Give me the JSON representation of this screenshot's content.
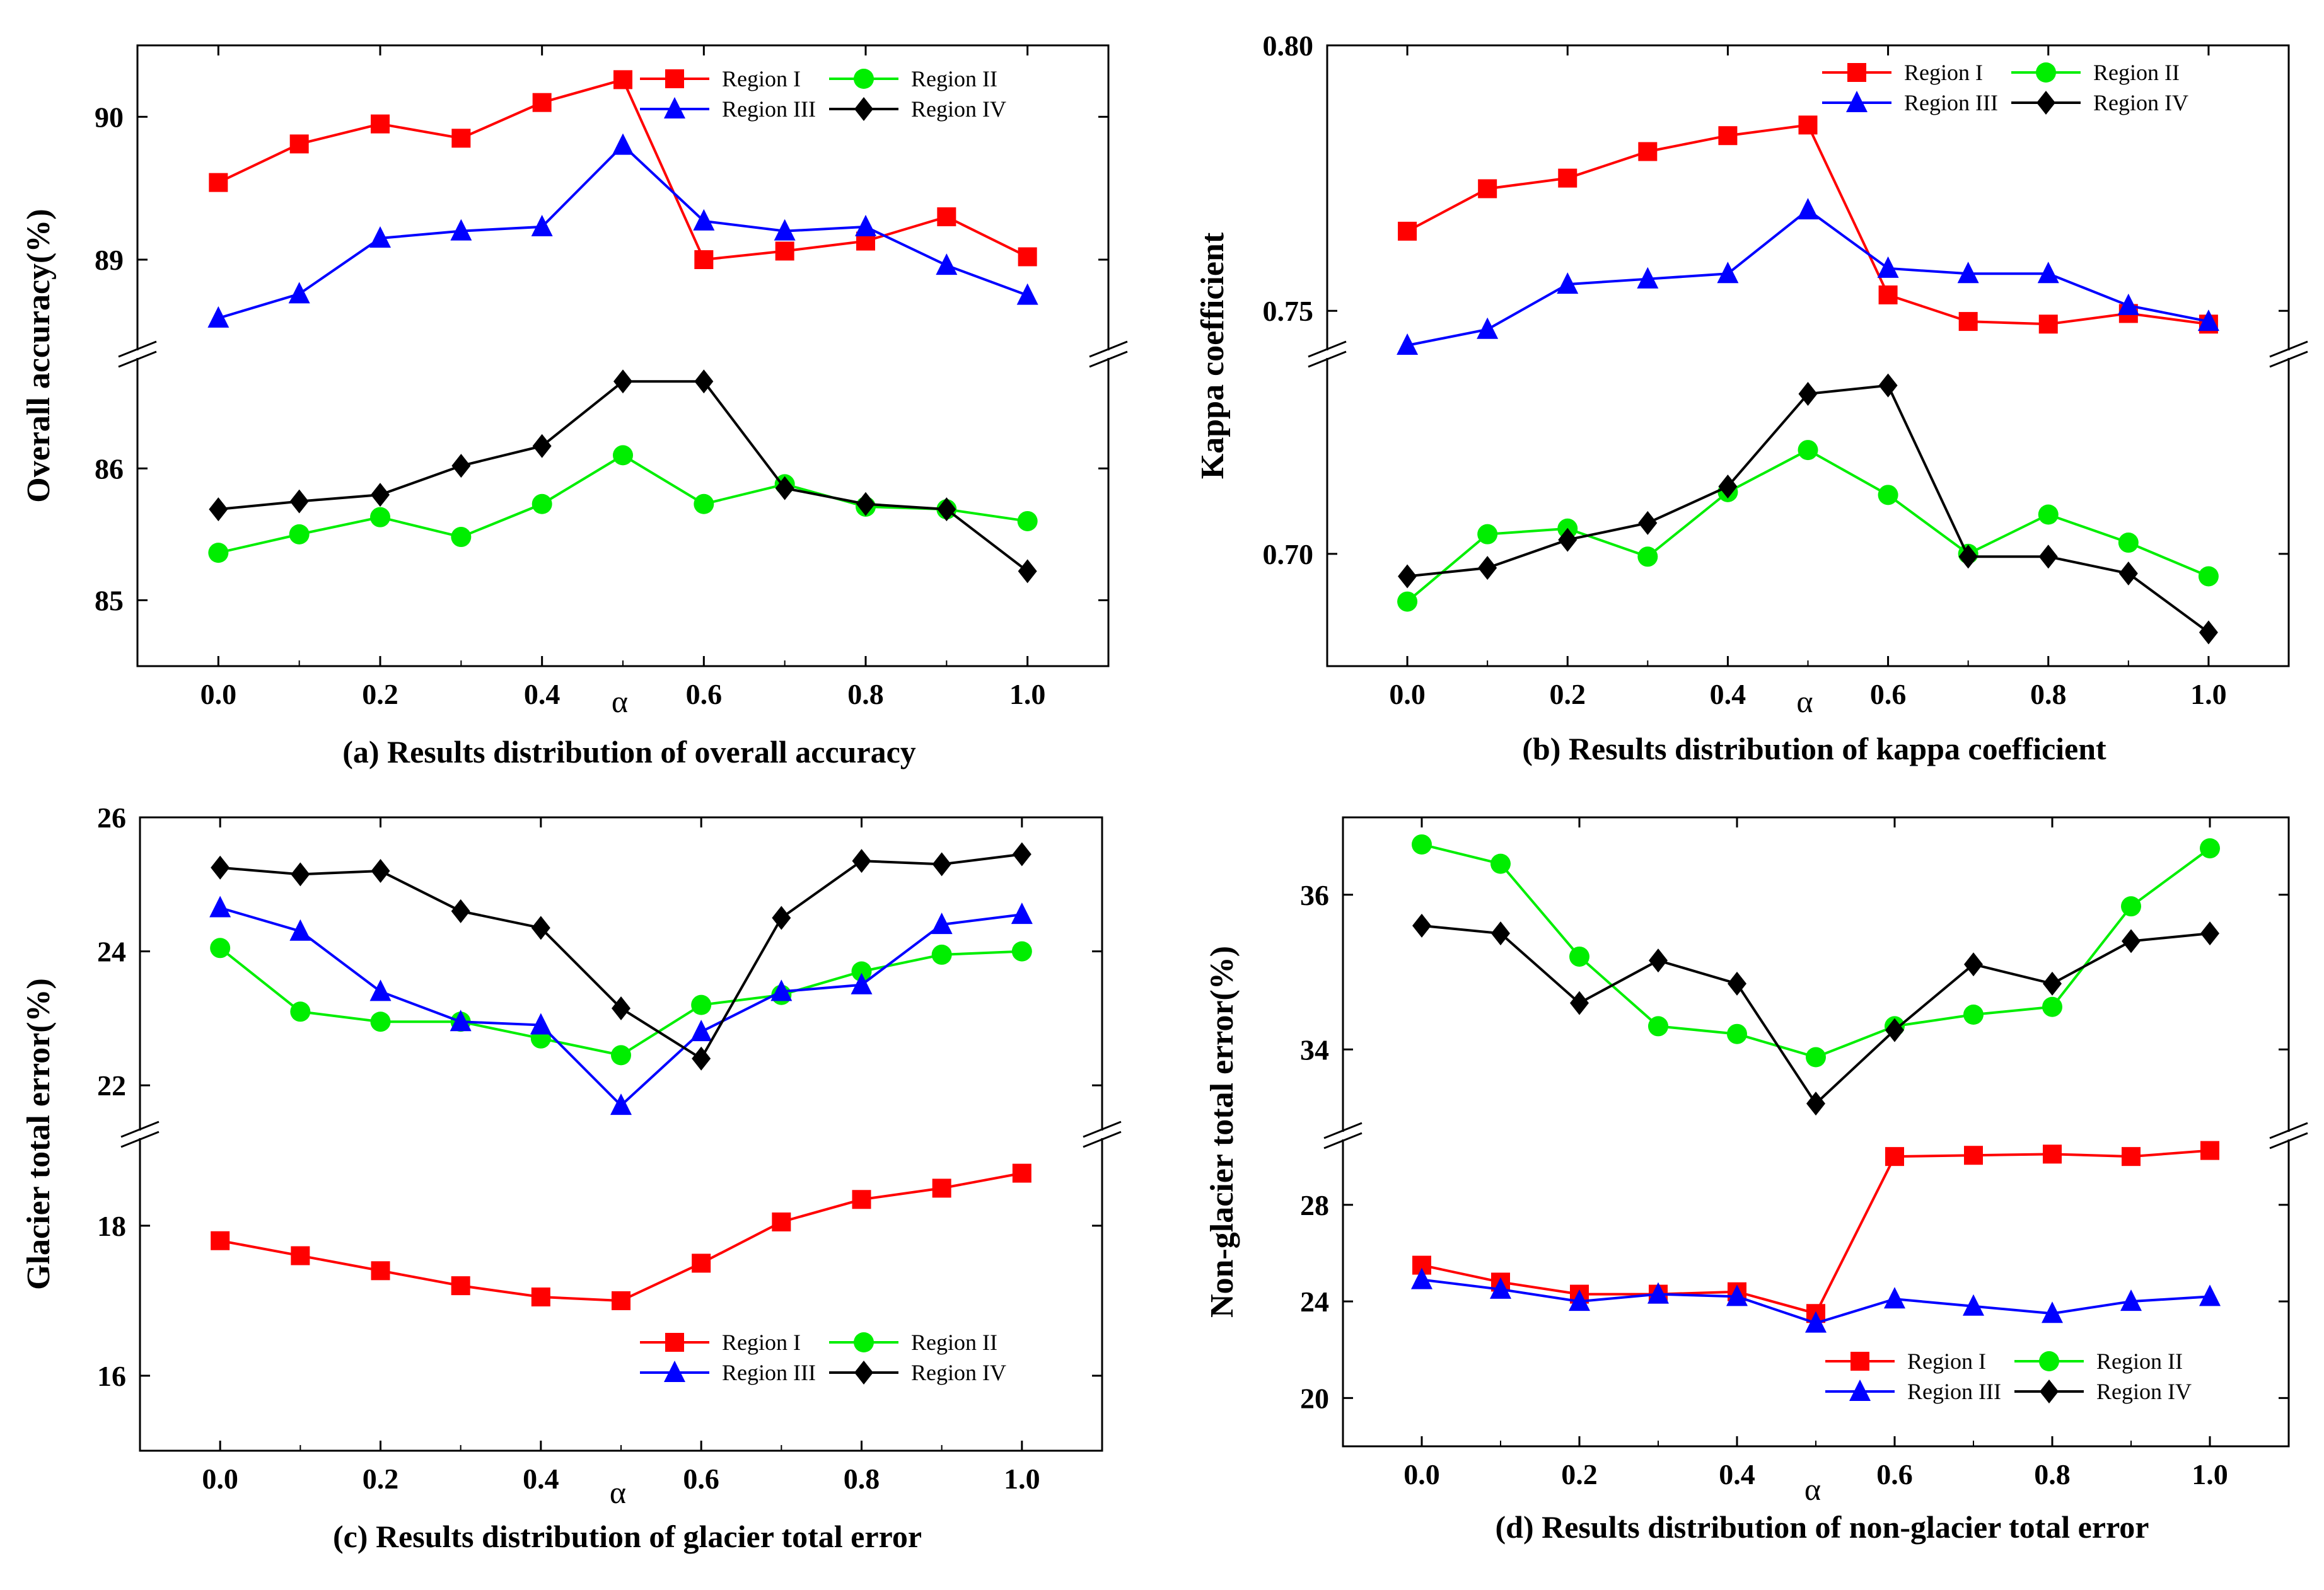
{
  "series_styles": [
    {
      "name": "Region I",
      "color": "#ff0000",
      "marker": "square"
    },
    {
      "name": "Region II",
      "color": "#00ee00",
      "marker": "circle"
    },
    {
      "name": "Region III",
      "color": "#0000ff",
      "marker": "triangle"
    },
    {
      "name": "Region IV",
      "color": "#000000",
      "marker": "diamond"
    }
  ],
  "chart_data": [
    {
      "type": "line",
      "caption": "(a) Results distribution of overall accuracy",
      "xlabel": "α",
      "ylabel": "Overall accuracy(%)",
      "x": [
        0.0,
        0.1,
        0.2,
        0.3,
        0.4,
        0.5,
        0.6,
        0.7,
        0.8,
        0.9,
        1.0
      ],
      "xlim": [
        -0.1,
        1.1
      ],
      "xticks": [
        "0.0",
        "0.2",
        "0.4",
        "0.6",
        "0.8",
        "1.0"
      ],
      "xtick_values": [
        0.0,
        0.2,
        0.4,
        0.6,
        0.8,
        1.0
      ],
      "broken_axis": true,
      "upper_ylim": [
        88.4,
        90.5
      ],
      "upper_yticks": [
        89,
        90
      ],
      "lower_ylim": [
        84.5,
        86.8
      ],
      "lower_yticks": [
        85,
        86
      ],
      "legend_position": "top-right",
      "series": [
        {
          "name": "Region I",
          "segment": "upper",
          "values": [
            89.54,
            89.81,
            89.95,
            89.85,
            90.1,
            90.26,
            89.0,
            89.06,
            89.13,
            89.3,
            89.02
          ]
        },
        {
          "name": "Region II",
          "segment": "lower",
          "values": [
            85.36,
            85.5,
            85.63,
            85.48,
            85.73,
            86.1,
            85.73,
            85.88,
            85.71,
            85.69,
            85.6
          ]
        },
        {
          "name": "Region III",
          "segment": "upper",
          "values": [
            88.59,
            88.76,
            89.15,
            89.2,
            89.23,
            89.8,
            89.27,
            89.2,
            89.23,
            88.96,
            88.75
          ]
        },
        {
          "name": "Region IV",
          "segment": "lower",
          "values": [
            85.69,
            85.75,
            85.8,
            86.02,
            86.17,
            86.66,
            86.66,
            85.85,
            85.73,
            85.69,
            85.22
          ]
        }
      ]
    },
    {
      "type": "line",
      "caption": "(b) Results distribution of kappa coefficient",
      "xlabel": "α",
      "ylabel": "Kappa coefficient",
      "x": [
        0.0,
        0.1,
        0.2,
        0.3,
        0.4,
        0.5,
        0.6,
        0.7,
        0.8,
        0.9,
        1.0
      ],
      "xlim": [
        -0.1,
        1.1
      ],
      "xticks": [
        "0.0",
        "0.2",
        "0.4",
        "0.6",
        "0.8",
        "1.0"
      ],
      "xtick_values": [
        0.0,
        0.2,
        0.4,
        0.6,
        0.8,
        1.0
      ],
      "broken_axis": true,
      "upper_ylim": [
        0.7435,
        0.8
      ],
      "upper_yticks": [
        "0.75",
        "0.80"
      ],
      "upper_ytick_values": [
        0.75,
        0.8
      ],
      "lower_ylim": [
        0.68,
        0.734
      ],
      "lower_yticks": [
        "0.70"
      ],
      "lower_ytick_values": [
        0.7
      ],
      "legend_position": "top-right",
      "series": [
        {
          "name": "Region I",
          "segment": "upper",
          "values": [
            0.765,
            0.773,
            0.775,
            0.78,
            0.783,
            0.785,
            0.753,
            0.748,
            0.7475,
            0.7495,
            0.7475
          ]
        },
        {
          "name": "Region II",
          "segment": "lower",
          "values": [
            0.6915,
            0.7035,
            0.7045,
            0.6995,
            0.711,
            0.7185,
            0.7105,
            0.7,
            0.707,
            0.702,
            0.696
          ]
        },
        {
          "name": "Region III",
          "segment": "upper",
          "values": [
            0.7435,
            0.7465,
            0.755,
            0.756,
            0.757,
            0.769,
            0.758,
            0.757,
            0.757,
            0.751,
            0.748
          ]
        },
        {
          "name": "Region IV",
          "segment": "lower",
          "values": [
            0.696,
            0.6975,
            0.7025,
            0.7055,
            0.712,
            0.7285,
            0.73,
            0.6995,
            0.6995,
            0.6965,
            0.686
          ]
        }
      ]
    },
    {
      "type": "line",
      "caption": "(c) Results distribution of glacier total error",
      "xlabel": "α",
      "ylabel": "Glacier total error(%)",
      "x": [
        0.0,
        0.1,
        0.2,
        0.3,
        0.4,
        0.5,
        0.6,
        0.7,
        0.8,
        0.9,
        1.0
      ],
      "xlim": [
        -0.1,
        1.1
      ],
      "xticks": [
        "0.0",
        "0.2",
        "0.4",
        "0.6",
        "0.8",
        "1.0"
      ],
      "xtick_values": [
        0.0,
        0.2,
        0.4,
        0.6,
        0.8,
        1.0
      ],
      "broken_axis": true,
      "upper_ylim": [
        21.4,
        26.0
      ],
      "upper_yticks": [
        22,
        24,
        26
      ],
      "lower_ylim": [
        15.0,
        19.1
      ],
      "lower_yticks": [
        16,
        18
      ],
      "legend_position": "bottom-right",
      "series": [
        {
          "name": "Region I",
          "segment": "lower",
          "values": [
            17.8,
            17.6,
            17.4,
            17.2,
            17.05,
            17.0,
            17.5,
            18.05,
            18.35,
            18.5,
            18.7
          ]
        },
        {
          "name": "Region II",
          "segment": "upper",
          "values": [
            24.05,
            23.1,
            22.95,
            22.95,
            22.7,
            22.45,
            23.2,
            23.35,
            23.7,
            23.95,
            24.0
          ]
        },
        {
          "name": "Region III",
          "segment": "upper",
          "values": [
            24.65,
            24.3,
            23.4,
            22.95,
            22.9,
            21.7,
            22.8,
            23.4,
            23.5,
            24.4,
            24.55
          ]
        },
        {
          "name": "Region IV",
          "segment": "upper",
          "values": [
            25.25,
            25.15,
            25.2,
            24.6,
            24.35,
            23.15,
            22.4,
            24.5,
            25.35,
            25.3,
            25.45
          ]
        }
      ]
    },
    {
      "type": "line",
      "caption": "(d) Results distribution of non-glacier total error",
      "xlabel": "α",
      "ylabel": "Non-glacier total error(%)",
      "x": [
        0.0,
        0.1,
        0.2,
        0.3,
        0.4,
        0.5,
        0.6,
        0.7,
        0.8,
        0.9,
        1.0
      ],
      "xlim": [
        -0.1,
        1.1
      ],
      "xticks": [
        "0.0",
        "0.2",
        "0.4",
        "0.6",
        "0.8",
        "1.0"
      ],
      "xtick_values": [
        0.0,
        0.2,
        0.4,
        0.6,
        0.8,
        1.0
      ],
      "broken_axis": true,
      "upper_ylim": [
        33.0,
        37.0
      ],
      "upper_yticks": [
        34,
        36
      ],
      "lower_ylim": [
        18.0,
        30.5
      ],
      "lower_yticks": [
        20,
        24,
        28
      ],
      "legend_position": "bottom-right",
      "series": [
        {
          "name": "Region I",
          "segment": "lower",
          "values": [
            25.5,
            24.8,
            24.3,
            24.3,
            24.4,
            23.5,
            30.0,
            30.05,
            30.1,
            30.0,
            30.25
          ]
        },
        {
          "name": "Region II",
          "segment": "upper",
          "values": [
            36.65,
            36.4,
            35.2,
            34.3,
            34.2,
            33.9,
            34.3,
            34.45,
            34.55,
            35.85,
            36.6
          ]
        },
        {
          "name": "Region III",
          "segment": "lower",
          "values": [
            24.9,
            24.5,
            24.0,
            24.3,
            24.2,
            23.1,
            24.1,
            23.8,
            23.5,
            24.0,
            24.2
          ]
        },
        {
          "name": "Region IV",
          "segment": "upper",
          "values": [
            35.6,
            35.5,
            34.6,
            35.15,
            34.85,
            33.3,
            34.25,
            35.1,
            34.85,
            35.4,
            35.5
          ]
        }
      ]
    }
  ]
}
